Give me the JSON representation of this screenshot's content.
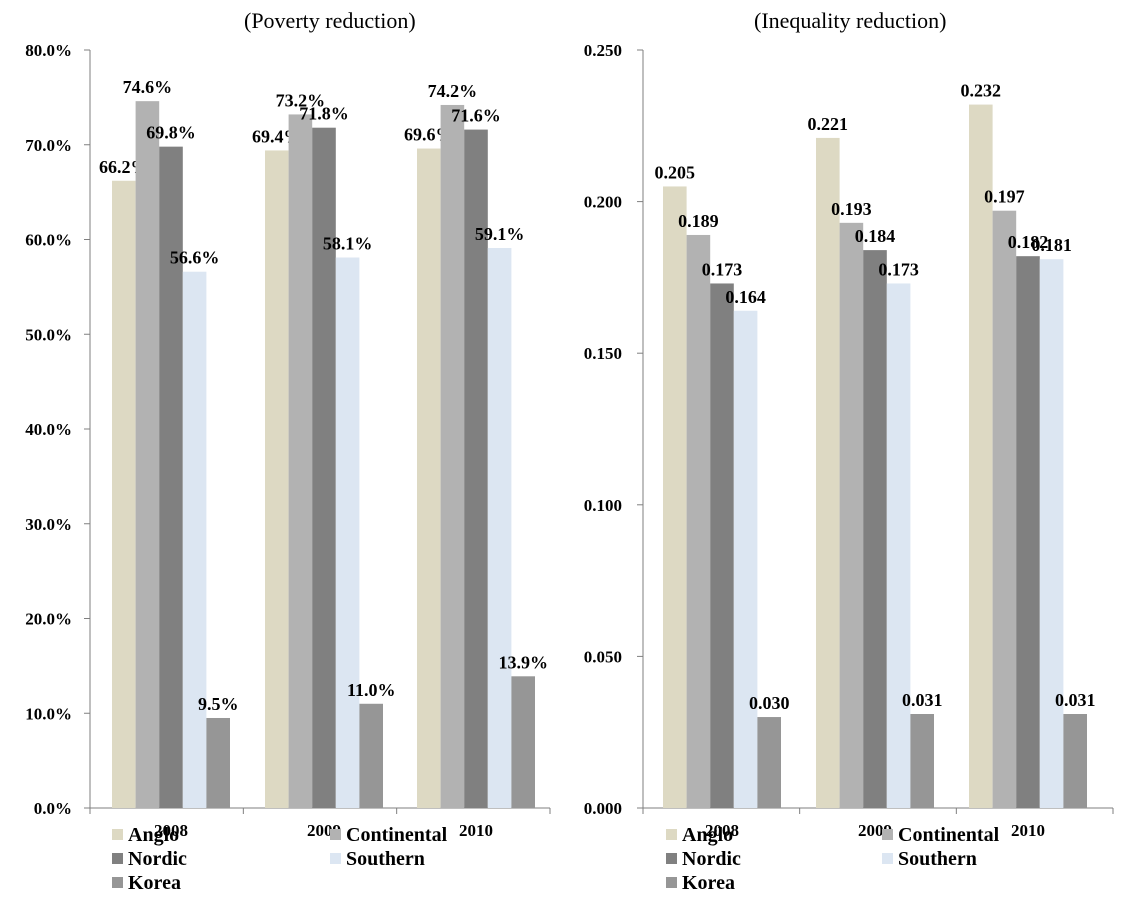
{
  "chart_data": [
    {
      "type": "bar",
      "title": "(Poverty reduction)",
      "categories": [
        "2008",
        "2009",
        "2010"
      ],
      "ylim": [
        0,
        0.8
      ],
      "yticks": [
        "0.0%",
        "10.0%",
        "20.0%",
        "30.0%",
        "40.0%",
        "50.0%",
        "60.0%",
        "70.0%",
        "80.0%"
      ],
      "value_format": "percent1",
      "legend_position": "bottom",
      "grid": false,
      "series": [
        {
          "name": "Anglo",
          "color": "#ddd9c3",
          "values": [
            0.662,
            0.694,
            0.696
          ],
          "labels": [
            "66.2%",
            "69.4%",
            "69.6%"
          ]
        },
        {
          "name": "Continental",
          "color": "#b2b2b2",
          "values": [
            0.746,
            0.732,
            0.742
          ],
          "labels": [
            "74.6%",
            "73.2%",
            "74.2%"
          ]
        },
        {
          "name": "Nordic",
          "color": "#808080",
          "values": [
            0.698,
            0.718,
            0.716
          ],
          "labels": [
            "69.8%",
            "71.8%",
            "71.6%"
          ]
        },
        {
          "name": "Southern",
          "color": "#dce6f2",
          "values": [
            0.566,
            0.581,
            0.591
          ],
          "labels": [
            "56.6%",
            "58.1%",
            "59.1%"
          ]
        },
        {
          "name": "Korea",
          "color": "#969696",
          "values": [
            0.095,
            0.11,
            0.139
          ],
          "labels": [
            "9.5%",
            "11.0%",
            "13.9%"
          ]
        }
      ]
    },
    {
      "type": "bar",
      "title": "(Inequality reduction)",
      "categories": [
        "2008",
        "2009",
        "2010"
      ],
      "ylim": [
        0,
        0.25
      ],
      "yticks": [
        "0.000",
        "0.050",
        "0.100",
        "0.150",
        "0.200",
        "0.250"
      ],
      "value_format": "fixed3",
      "legend_position": "bottom",
      "grid": false,
      "series": [
        {
          "name": "Anglo",
          "color": "#ddd9c3",
          "values": [
            0.205,
            0.221,
            0.232
          ],
          "labels": [
            "0.205",
            "0.221",
            "0.232"
          ]
        },
        {
          "name": "Continental",
          "color": "#b2b2b2",
          "values": [
            0.189,
            0.193,
            0.197
          ],
          "labels": [
            "0.189",
            "0.193",
            "0.197"
          ]
        },
        {
          "name": "Nordic",
          "color": "#808080",
          "values": [
            0.173,
            0.184,
            0.182
          ],
          "labels": [
            "0.173",
            "0.184",
            "0.182"
          ]
        },
        {
          "name": "Southern",
          "color": "#dce6f2",
          "values": [
            0.164,
            0.173,
            0.181
          ],
          "labels": [
            "0.164",
            "0.173",
            "0.181"
          ]
        },
        {
          "name": "Korea",
          "color": "#969696",
          "values": [
            0.03,
            0.031,
            0.031
          ],
          "labels": [
            "0.030",
            "0.031",
            "0.031"
          ]
        }
      ]
    }
  ]
}
